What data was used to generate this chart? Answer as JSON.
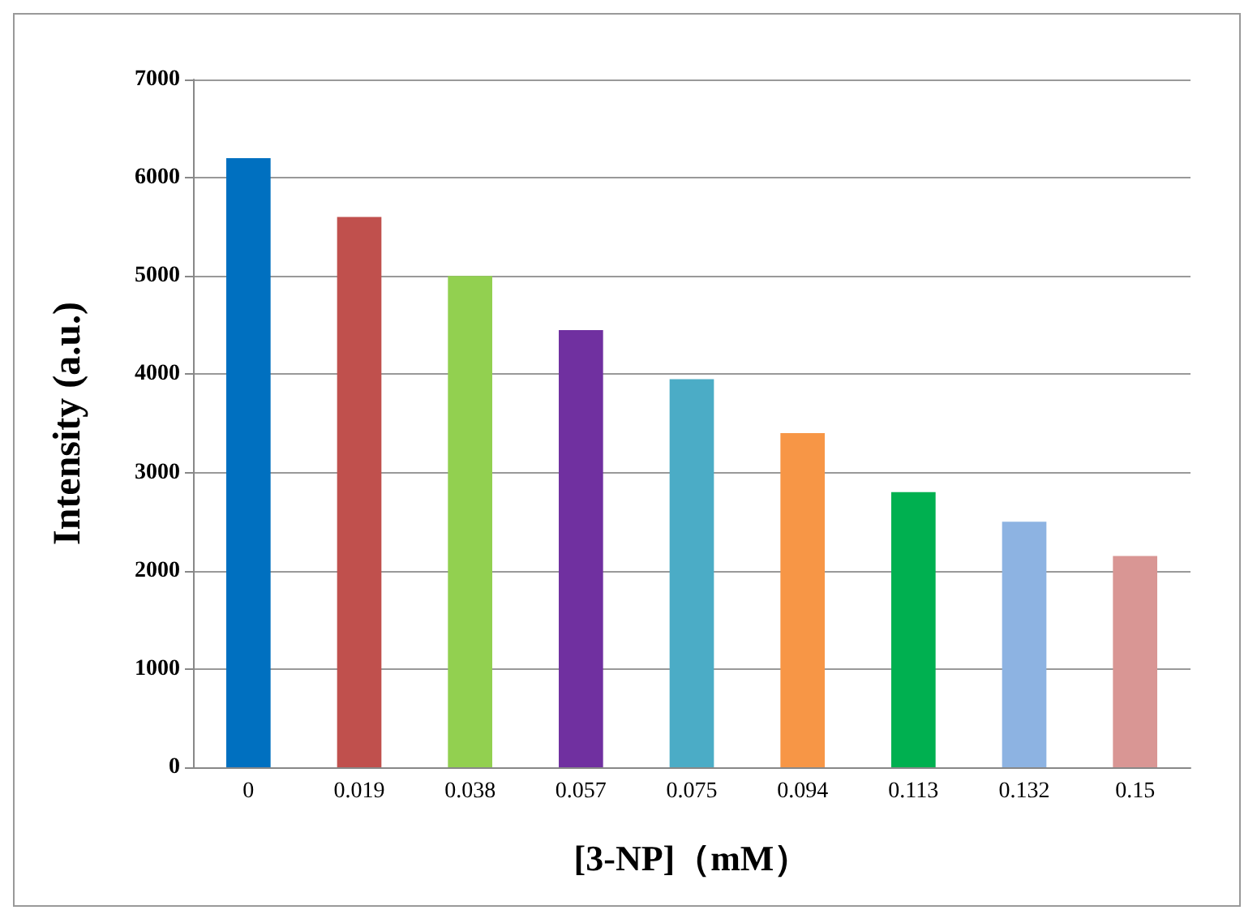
{
  "chart_data": {
    "type": "bar",
    "xlabel": "[3-NP]（mM）",
    "ylabel": "Intensity (a.u.)",
    "categories": [
      "0",
      "0.019",
      "0.038",
      "0.057",
      "0.075",
      "0.094",
      "0.113",
      "0.132",
      "0.15"
    ],
    "values": [
      6200,
      5600,
      5000,
      4450,
      3950,
      3400,
      2800,
      2500,
      2150
    ],
    "colors": [
      "#0070c0",
      "#c0504d",
      "#92d050",
      "#7030a0",
      "#4bacc6",
      "#f79646",
      "#00b050",
      "#8db3e2",
      "#d99694"
    ],
    "ylim": [
      0,
      7000
    ],
    "yticks": [
      0,
      1000,
      2000,
      3000,
      4000,
      5000,
      6000,
      7000
    ],
    "grid": "y"
  }
}
